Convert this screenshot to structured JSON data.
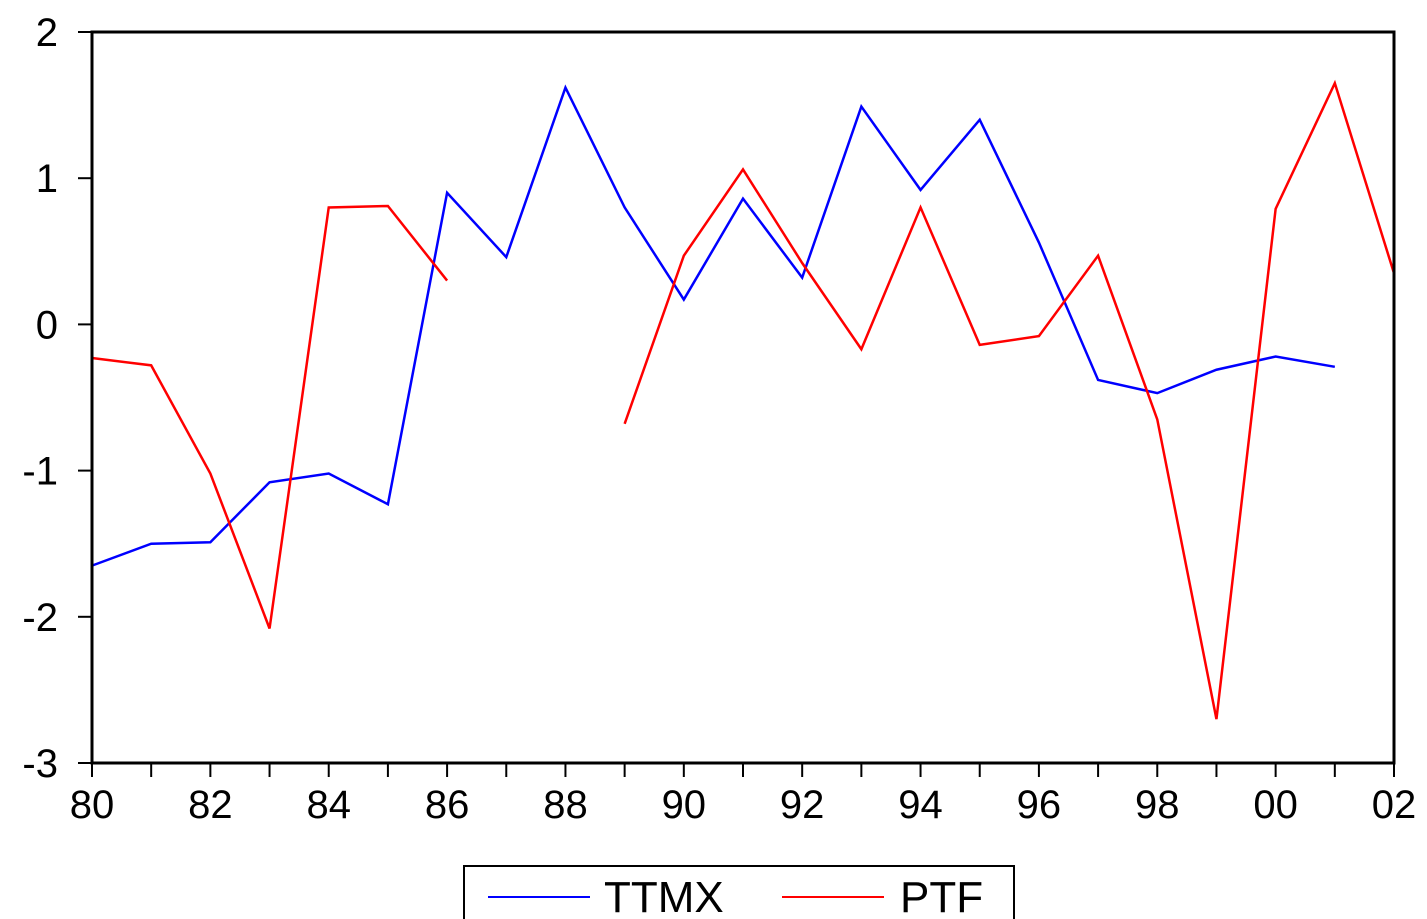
{
  "chart_data": {
    "type": "line",
    "title": "",
    "xlabel": "",
    "ylabel": "",
    "x": [
      1980,
      1981,
      1982,
      1983,
      1984,
      1985,
      1986,
      1987,
      1988,
      1989,
      1990,
      1991,
      1992,
      1993,
      1994,
      1995,
      1996,
      1997,
      1998,
      1999,
      2000,
      2001,
      2002
    ],
    "x_tick_labels": [
      "80",
      "82",
      "84",
      "86",
      "88",
      "90",
      "92",
      "94",
      "96",
      "98",
      "00",
      "02"
    ],
    "x_tick_values": [
      1980,
      1982,
      1984,
      1986,
      1988,
      1990,
      1992,
      1994,
      1996,
      1998,
      2000,
      2002
    ],
    "xlim": [
      1980,
      2002
    ],
    "ylim": [
      -3,
      2
    ],
    "y_ticks": [
      2,
      1,
      0,
      -1,
      -2,
      -3
    ],
    "y_tick_labels": [
      "2",
      "1",
      "0",
      "-1",
      "-2",
      "-3"
    ],
    "grid": false,
    "legend_position": "bottom-center",
    "series": [
      {
        "name": "TTMX",
        "color": "#0000ff",
        "values": [
          -1.65,
          -1.5,
          -1.49,
          -1.08,
          -1.02,
          -1.23,
          0.9,
          0.46,
          1.62,
          0.8,
          0.17,
          0.86,
          0.32,
          1.49,
          0.92,
          1.4,
          0.56,
          -0.38,
          -0.47,
          -0.31,
          -0.22,
          -0.29,
          null
        ]
      },
      {
        "name": "PTF",
        "color": "#ff0000",
        "values": [
          -0.23,
          -0.28,
          -1.02,
          -2.08,
          0.8,
          0.81,
          0.3,
          null,
          null,
          -0.68,
          0.47,
          1.06,
          0.42,
          -0.17,
          0.8,
          -0.14,
          -0.08,
          0.47,
          -0.65,
          -2.7,
          0.79,
          1.65,
          0.35
        ]
      }
    ]
  }
}
